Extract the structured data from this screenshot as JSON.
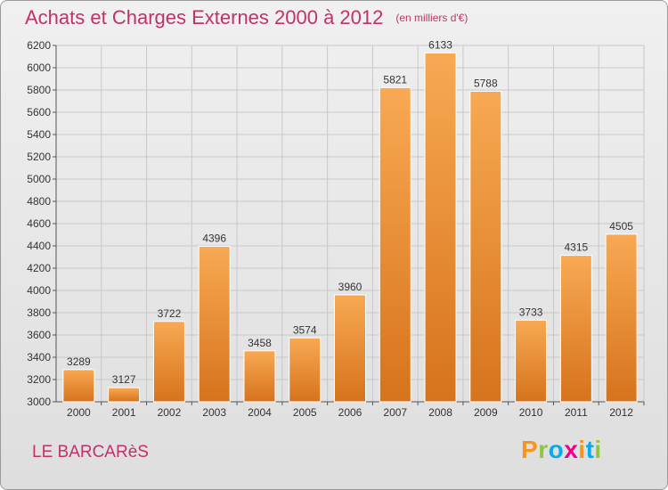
{
  "title": "Achats et Charges Externes 2000 à 2012",
  "subtitle": "(en milliers d'€)",
  "place": "LE BARCARèS",
  "logo": {
    "letters": [
      "P",
      "r",
      "o",
      "x",
      "i",
      "t",
      "i"
    ],
    "colors": [
      "#f7941e",
      "#8dc63f",
      "#00aeef",
      "#ec008c",
      "#f7941e",
      "#00aeef",
      "#8dc63f"
    ]
  },
  "colors": {
    "title": "#c0326a",
    "bar_light": "#f8a953",
    "bar_dark": "#d6731c",
    "grid": "#c8c8c8"
  },
  "chart_data": {
    "type": "bar",
    "title": "Achats et Charges Externes 2000 à 2012",
    "subtitle": "(en milliers d'€)",
    "categories": [
      "2000",
      "2001",
      "2002",
      "2003",
      "2004",
      "2005",
      "2006",
      "2007",
      "2008",
      "2009",
      "2010",
      "2011",
      "2012"
    ],
    "values": [
      3289,
      3127,
      3722,
      4396,
      3458,
      3574,
      3960,
      5821,
      6133,
      5788,
      3733,
      4315,
      4505
    ],
    "ylim": [
      3000,
      6200
    ],
    "yticks": [
      3000,
      3200,
      3400,
      3600,
      3800,
      4000,
      4200,
      4400,
      4600,
      4800,
      5000,
      5200,
      5400,
      5600,
      5800,
      6000,
      6200
    ],
    "grid": true,
    "xlabel": "",
    "ylabel": ""
  }
}
